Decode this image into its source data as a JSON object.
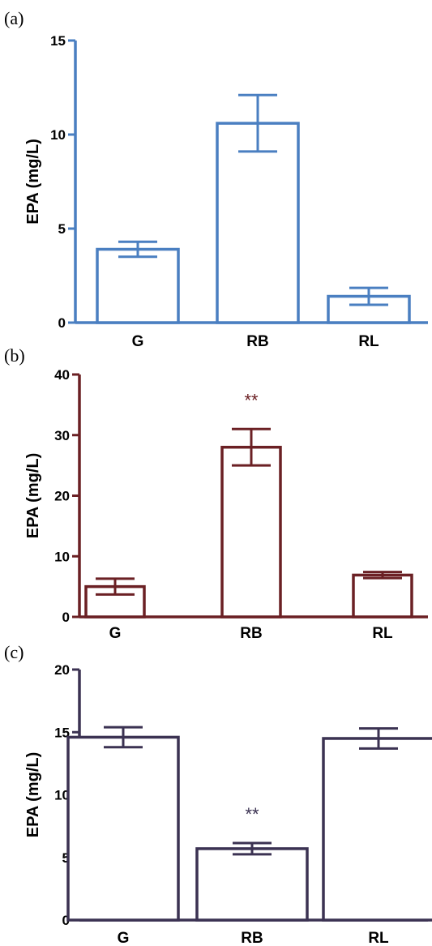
{
  "chart_data": [
    {
      "panel": "(a)",
      "type": "bar",
      "color": "#4a7fc1",
      "categories": [
        "G",
        "RB",
        "RL"
      ],
      "values": [
        3.9,
        10.6,
        1.4
      ],
      "errors": [
        0.4,
        1.5,
        0.45
      ],
      "significance": [
        "",
        "",
        ""
      ],
      "ylabel": "EPA (mg/L)",
      "ylim": [
        0,
        15
      ],
      "yticks": [
        0,
        5,
        10,
        15
      ],
      "grid": false
    },
    {
      "panel": "(b)",
      "type": "bar",
      "color": "#6b2024",
      "categories": [
        "G",
        "RB",
        "RL"
      ],
      "values": [
        5.0,
        28.0,
        6.9
      ],
      "errors": [
        1.3,
        3.0,
        0.5
      ],
      "significance": [
        "",
        "**",
        ""
      ],
      "ylabel": "EPA (mg/L)",
      "ylim": [
        0,
        40
      ],
      "yticks": [
        0,
        10,
        20,
        30,
        40
      ],
      "grid": false
    },
    {
      "panel": "(c)",
      "type": "bar",
      "color": "#3b3252",
      "categories": [
        "G",
        "RB",
        "RL"
      ],
      "values": [
        14.6,
        5.7,
        14.5
      ],
      "errors": [
        0.8,
        0.45,
        0.8
      ],
      "significance": [
        "",
        "**",
        ""
      ],
      "ylabel": "EPA (mg/L)",
      "ylim": [
        0,
        20
      ],
      "yticks": [
        0,
        5,
        10,
        15,
        20
      ],
      "grid": false
    }
  ]
}
